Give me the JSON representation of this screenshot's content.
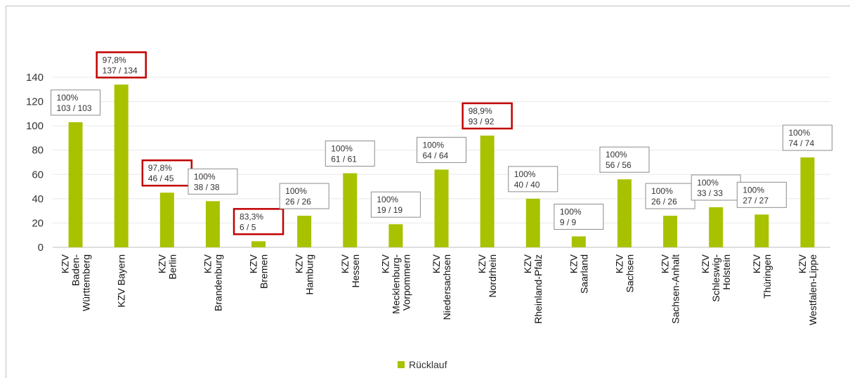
{
  "chart_data": {
    "type": "bar",
    "categories": [
      [
        "KZV",
        "Baden-",
        "Württemberg"
      ],
      [
        "KZV Bayern"
      ],
      [
        "KZV",
        "Berlin"
      ],
      [
        "KZV",
        "Brandenburg"
      ],
      [
        "KZV",
        "Bremen"
      ],
      [
        "KZV",
        "Hamburg"
      ],
      [
        "KZV",
        "Hessen"
      ],
      [
        "KZV",
        "Mecklenburg-",
        "Vorpommern"
      ],
      [
        "KZV",
        "Niedersachsen"
      ],
      [
        "KZV",
        "Nordrhein"
      ],
      [
        "KZV",
        "Rheinland-Pfalz"
      ],
      [
        "KZV",
        "Saarland"
      ],
      [
        "KZV",
        "Sachsen"
      ],
      [
        "KZV",
        "Sachsen-Anhalt"
      ],
      [
        "KZV",
        "Schleswig-",
        "Holstein"
      ],
      [
        "KZV",
        "Thüringen"
      ],
      [
        "KZV",
        "Westfalen-Lippe"
      ]
    ],
    "series": [
      {
        "name": "Rücklauf",
        "values": [
          103,
          134,
          45,
          38,
          5,
          26,
          61,
          19,
          64,
          92,
          40,
          9,
          56,
          26,
          33,
          27,
          74
        ]
      }
    ],
    "annotations": [
      {
        "pct": "100%",
        "ratio": "103 / 103",
        "highlight": false
      },
      {
        "pct": "97,8%",
        "ratio": "137 / 134",
        "highlight": true
      },
      {
        "pct": "97,8%",
        "ratio": "46 / 45",
        "highlight": true
      },
      {
        "pct": "100%",
        "ratio": "38 / 38",
        "highlight": false
      },
      {
        "pct": "83,3%",
        "ratio": "6 / 5",
        "highlight": true
      },
      {
        "pct": "100%",
        "ratio": "26 / 26",
        "highlight": false
      },
      {
        "pct": "100%",
        "ratio": "61 / 61",
        "highlight": false
      },
      {
        "pct": "100%",
        "ratio": "19 / 19",
        "highlight": false
      },
      {
        "pct": "100%",
        "ratio": "64 / 64",
        "highlight": false
      },
      {
        "pct": "98,9%",
        "ratio": "93 / 92",
        "highlight": true
      },
      {
        "pct": "100%",
        "ratio": "40 / 40",
        "highlight": false
      },
      {
        "pct": "100%",
        "ratio": "9 / 9",
        "highlight": false
      },
      {
        "pct": "100%",
        "ratio": "56 / 56",
        "highlight": false
      },
      {
        "pct": "100%",
        "ratio": "26 / 26",
        "highlight": false
      },
      {
        "pct": "100%",
        "ratio": "33 / 33",
        "highlight": false
      },
      {
        "pct": "100%",
        "ratio": "27 / 27",
        "highlight": false
      },
      {
        "pct": "100%",
        "ratio": "74 / 74",
        "highlight": false
      }
    ],
    "yticks": [
      0,
      20,
      40,
      60,
      80,
      100,
      120,
      140
    ],
    "ylim": [
      0,
      140
    ],
    "grid": true,
    "legend_position": "bottom",
    "colors": {
      "bar": "#a9c200",
      "highlight_border": "#c00000",
      "box_border": "#8c8c8c",
      "grid": "#e8e8e8"
    }
  }
}
